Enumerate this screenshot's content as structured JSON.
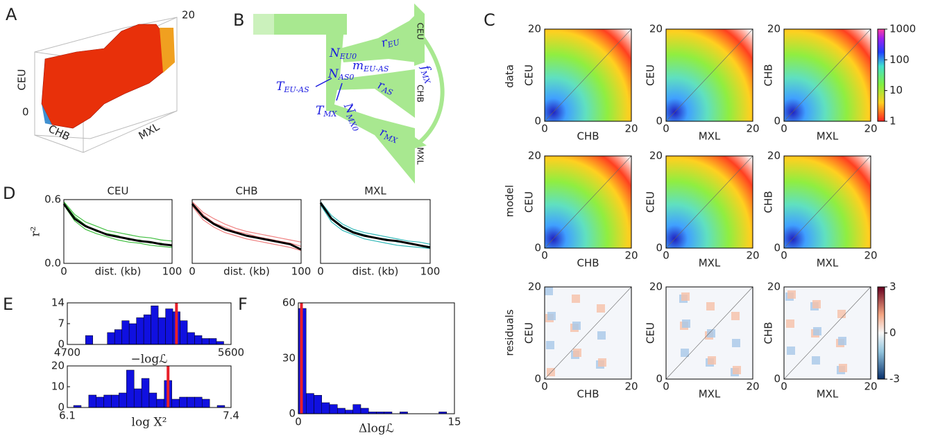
{
  "panel_labels": [
    "A",
    "B",
    "C",
    "D",
    "E",
    "F"
  ],
  "panel_a": {
    "z_label": "CEU",
    "x_label": "CHB",
    "y_label": "MXL",
    "min_label": "0",
    "max_label": "20"
  },
  "panel_b": {
    "params": [
      {
        "main": "r",
        "sub": "EU"
      },
      {
        "main": "N",
        "sub": "EU0"
      },
      {
        "main": "m",
        "sub": "EU-AS"
      },
      {
        "main": "N",
        "sub": "AS0"
      },
      {
        "main": "r",
        "sub": "AS"
      },
      {
        "main": "T",
        "sub": "EU-AS"
      },
      {
        "main": "T",
        "sub": "MX"
      },
      {
        "main": "N",
        "sub": "MX0"
      },
      {
        "main": "r",
        "sub": "MX"
      },
      {
        "main": "f",
        "sub": "MX"
      }
    ],
    "populations": [
      "CEU",
      "CHB",
      "MXL"
    ]
  },
  "panel_c": {
    "row_labels": [
      "data",
      "model",
      "residuals"
    ],
    "subplots": [
      {
        "xlabel": "CHB",
        "ylabel": "CEU",
        "xticks": [
          0,
          20
        ],
        "yticks": [
          0,
          20
        ]
      },
      {
        "xlabel": "MXL",
        "ylabel": "CEU",
        "xticks": [
          0,
          20
        ],
        "yticks": [
          0,
          20
        ]
      },
      {
        "xlabel": "MXL",
        "ylabel": "CHB",
        "xticks": [
          0,
          20
        ],
        "yticks": [
          0,
          20
        ]
      }
    ],
    "colorbars": [
      {
        "scale": "log",
        "lim": [
          1,
          1000
        ],
        "ticks": [
          1,
          10,
          100,
          1000
        ]
      },
      {
        "scale": "linear",
        "lim": [
          -3,
          3
        ],
        "ticks": [
          -3,
          0,
          3
        ]
      }
    ]
  },
  "chart_data": [
    {
      "type": "line",
      "title": "CEU",
      "xlabel": "dist. (kb)",
      "ylabel": "r²",
      "x": [
        0,
        10,
        20,
        30,
        40,
        50,
        60,
        70,
        80,
        90,
        100
      ],
      "xlim": [
        0,
        100
      ],
      "xticks": [
        0,
        100
      ],
      "ylim": [
        0,
        0.6
      ],
      "yticks": [
        {
          "value": 0,
          "label": "0.0"
        },
        {
          "value": 0.6,
          "label": "0.6"
        }
      ],
      "series": [
        {
          "color": "#3fbf3f",
          "values": [
            0.58,
            0.46,
            0.39,
            0.35,
            0.31,
            0.29,
            0.27,
            0.25,
            0.24,
            0.22,
            0.21
          ]
        },
        {
          "color": "#3fbf3f",
          "values": [
            0.55,
            0.4,
            0.32,
            0.28,
            0.25,
            0.22,
            0.2,
            0.19,
            0.17,
            0.16,
            0.15
          ]
        },
        {
          "color": "#3fbf3f",
          "values": [
            0.57,
            0.44,
            0.36,
            0.3,
            0.28,
            0.26,
            0.22,
            0.22,
            0.19,
            0.19,
            0.16
          ]
        },
        {
          "color": "#000000",
          "values": [
            0.56,
            0.42,
            0.35,
            0.31,
            0.27,
            0.25,
            0.23,
            0.21,
            0.2,
            0.18,
            0.17
          ]
        }
      ]
    },
    {
      "type": "line",
      "title": "CHB",
      "xlabel": "dist. (kb)",
      "x": [
        0,
        10,
        20,
        30,
        40,
        50,
        60,
        70,
        80,
        90,
        100
      ],
      "xlim": [
        0,
        100
      ],
      "xticks": [
        0,
        100
      ],
      "ylim": [
        0,
        0.6
      ],
      "yticks": [],
      "series": [
        {
          "color": "#f08080",
          "values": [
            0.58,
            0.48,
            0.42,
            0.37,
            0.33,
            0.3,
            0.28,
            0.26,
            0.24,
            0.22,
            0.2
          ]
        },
        {
          "color": "#f08080",
          "values": [
            0.54,
            0.41,
            0.34,
            0.29,
            0.26,
            0.23,
            0.21,
            0.19,
            0.17,
            0.15,
            0.12
          ]
        },
        {
          "color": "#f08080",
          "values": [
            0.57,
            0.46,
            0.38,
            0.34,
            0.3,
            0.28,
            0.25,
            0.23,
            0.21,
            0.19,
            0.16
          ]
        },
        {
          "color": "#000000",
          "values": [
            0.56,
            0.44,
            0.37,
            0.32,
            0.29,
            0.26,
            0.24,
            0.22,
            0.2,
            0.18,
            0.13
          ]
        }
      ]
    },
    {
      "type": "line",
      "title": "MXL",
      "xlabel": "dist. (kb)",
      "x": [
        0,
        10,
        20,
        30,
        40,
        50,
        60,
        70,
        80,
        90,
        100
      ],
      "xlim": [
        0,
        100
      ],
      "xticks": [
        0,
        100
      ],
      "ylim": [
        0,
        0.6
      ],
      "yticks": [],
      "series": [
        {
          "color": "#30b8b8",
          "values": [
            0.58,
            0.45,
            0.37,
            0.32,
            0.29,
            0.27,
            0.25,
            0.23,
            0.21,
            0.2,
            0.18
          ]
        },
        {
          "color": "#30b8b8",
          "values": [
            0.55,
            0.39,
            0.31,
            0.27,
            0.23,
            0.21,
            0.19,
            0.17,
            0.16,
            0.15,
            0.14
          ]
        },
        {
          "color": "#30b8b8",
          "values": [
            0.56,
            0.43,
            0.35,
            0.3,
            0.27,
            0.24,
            0.23,
            0.2,
            0.19,
            0.17,
            0.16
          ]
        },
        {
          "color": "#000000",
          "values": [
            0.57,
            0.42,
            0.34,
            0.29,
            0.26,
            0.24,
            0.22,
            0.21,
            0.19,
            0.17,
            0.15
          ]
        }
      ]
    },
    {
      "type": "histogram",
      "xlabel": "−logℒ",
      "color": "#1010e0",
      "reference": 5300,
      "reference_color": "#e8202a",
      "bins": [
        4800,
        4840,
        4880,
        4920,
        4960,
        5000,
        5040,
        5080,
        5120,
        5160,
        5200,
        5240,
        5280,
        5320,
        5360,
        5400,
        5440,
        5480,
        5520,
        5560,
        5600
      ],
      "values": [
        3,
        0,
        0,
        4,
        5,
        8,
        7,
        9,
        10,
        13,
        9,
        12,
        11,
        8,
        4,
        3,
        2,
        2,
        1,
        0
      ],
      "xlim": [
        4700,
        5600
      ],
      "xticks": [
        4700,
        5600
      ],
      "ylim": [
        0,
        14
      ],
      "yticks": [
        0,
        7,
        14
      ]
    },
    {
      "type": "histogram",
      "xlabel": "log X²",
      "color": "#1010e0",
      "reference": 6.9,
      "reference_color": "#e8202a",
      "bins": [
        6.15,
        6.21,
        6.27,
        6.33,
        6.39,
        6.45,
        6.51,
        6.57,
        6.63,
        6.69,
        6.75,
        6.81,
        6.87,
        6.93,
        6.99,
        7.05,
        7.11,
        7.17,
        7.23,
        7.29,
        7.35
      ],
      "values": [
        1,
        0,
        6,
        5,
        6,
        6,
        7,
        18,
        9,
        14,
        7,
        4,
        13,
        4,
        5,
        5,
        5,
        4,
        0,
        1
      ],
      "xlim": [
        6.1,
        7.4
      ],
      "xticks": [
        6.1,
        7.4
      ],
      "ylim": [
        0,
        20
      ],
      "yticks": [
        0,
        10,
        20
      ]
    },
    {
      "type": "histogram",
      "xlabel": "Δlogℒ",
      "color": "#1010e0",
      "reference": 0.3,
      "reference_color": "#e8202a",
      "bins": [
        0,
        0.75,
        1.5,
        2.25,
        3,
        3.75,
        4.5,
        5.25,
        6,
        6.75,
        7.5,
        8.25,
        9,
        9.75,
        10.5,
        11.25,
        12,
        12.75,
        13.5,
        14.25,
        15
      ],
      "values": [
        57,
        11,
        10,
        6,
        5,
        3,
        2,
        5,
        3,
        1,
        1,
        1,
        0,
        1,
        0,
        0,
        0,
        0,
        1,
        0
      ],
      "xlim": [
        0,
        15
      ],
      "xticks": [
        0,
        15
      ],
      "ylim": [
        0,
        60
      ],
      "yticks": [
        0,
        30,
        60
      ]
    }
  ]
}
